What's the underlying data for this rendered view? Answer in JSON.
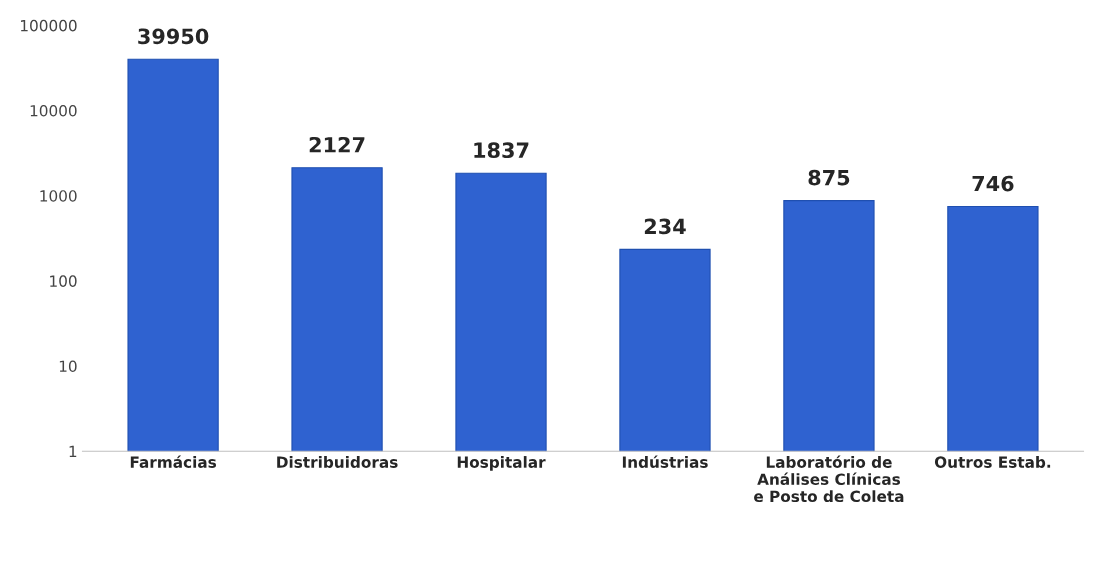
{
  "chart_data": {
    "type": "bar",
    "categories": [
      "Farmácias",
      "Distribuidoras",
      "Hospitalar",
      "Indústrias",
      "Laboratório de Análises Clínicas e Posto de Coleta",
      "Outros Estab."
    ],
    "values": [
      39950,
      2127,
      1837,
      234,
      875,
      746
    ],
    "color": "#2f62d0",
    "log": "y",
    "ylim": [
      1,
      100000
    ],
    "yticks": [
      1,
      10,
      100,
      1000,
      10000,
      100000
    ],
    "grid": false,
    "data_labels": true
  }
}
